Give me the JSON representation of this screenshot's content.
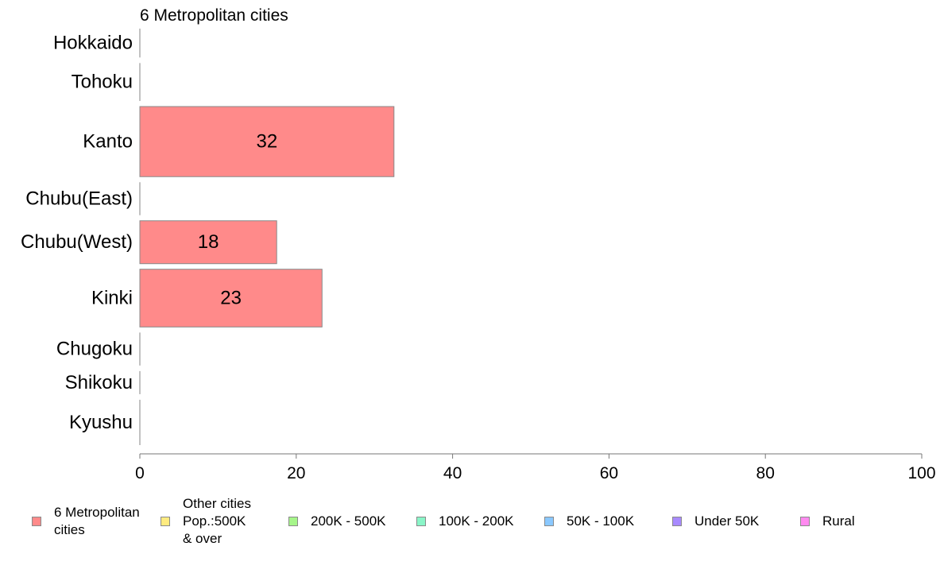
{
  "chart_data": {
    "type": "bar",
    "orientation": "horizontal",
    "title": "6 Metropolitan cities",
    "categories": [
      "Hokkaido",
      "Tohoku",
      "Kanto",
      "Chubu(East)",
      "Chubu(West)",
      "Kinki",
      "Chugoku",
      "Shikoku",
      "Kyushu"
    ],
    "series": [
      {
        "name": "6 Metropolitan cities",
        "values": [
          0,
          0,
          32.5,
          0,
          17.5,
          23.3,
          0,
          0,
          0
        ],
        "labels": [
          "",
          "",
          "32",
          "",
          "18",
          "23",
          "",
          "",
          ""
        ],
        "color": "#FF8A8A"
      }
    ],
    "category_weights": [
      3.5,
      4.6,
      8.5,
      4.0,
      5.2,
      7.0,
      4.0,
      2.8,
      5.5
    ],
    "xlim": [
      0,
      100
    ],
    "xticks": [
      0,
      20,
      40,
      60,
      80,
      100
    ],
    "xlabel": "",
    "ylabel": "",
    "grid": false,
    "legend_position": "bottom",
    "legend": [
      {
        "label": "6 Metropolitan\n cities",
        "color": "#FF8A8A"
      },
      {
        "label": "Other cities\nPop.:500K\n & over",
        "color": "#FFEB80"
      },
      {
        "label": "200K - 500K",
        "color": "#A6F58A"
      },
      {
        "label": "100K - 200K",
        "color": "#8AF5C8"
      },
      {
        "label": "50K - 100K",
        "color": "#8AC8FF"
      },
      {
        "label": "Under 50K",
        "color": "#A88AFF"
      },
      {
        "label": "Rural",
        "color": "#FF8AF0"
      }
    ]
  }
}
